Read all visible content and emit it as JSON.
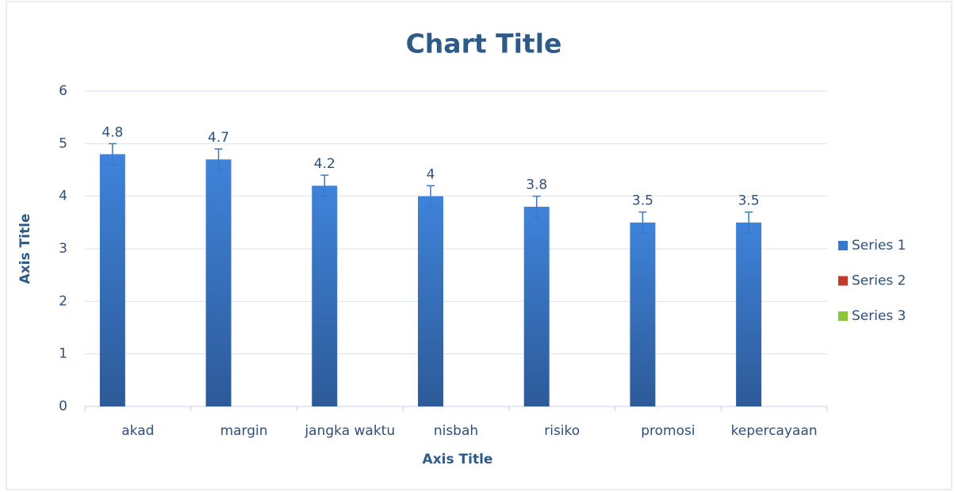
{
  "chart_data": {
    "type": "bar",
    "title": "Chart Title",
    "x_axis_title": "Axis Title",
    "y_axis_title": "Axis Title",
    "categories": [
      "akad",
      "margin",
      "jangka waktu",
      "nisbah",
      "risiko",
      "promosi",
      "kepercayaan"
    ],
    "series": [
      {
        "name": "Series 1",
        "color": "#3a78c9",
        "values": [
          4.8,
          4.7,
          4.2,
          4,
          3.8,
          3.5,
          3.5
        ],
        "errors": [
          0.2,
          0.2,
          0.2,
          0.2,
          0.2,
          0.2,
          0.2
        ]
      },
      {
        "name": "Series 2",
        "color": "#c0392b",
        "values": [
          null,
          null,
          null,
          null,
          null,
          null,
          null
        ]
      },
      {
        "name": "Series 3",
        "color": "#8cc63f",
        "values": [
          null,
          null,
          null,
          null,
          null,
          null,
          null
        ]
      }
    ],
    "ylim": [
      0,
      6
    ],
    "yticks": [
      0,
      1,
      2,
      3,
      4,
      5,
      6
    ],
    "grid": true,
    "legend": "right"
  }
}
